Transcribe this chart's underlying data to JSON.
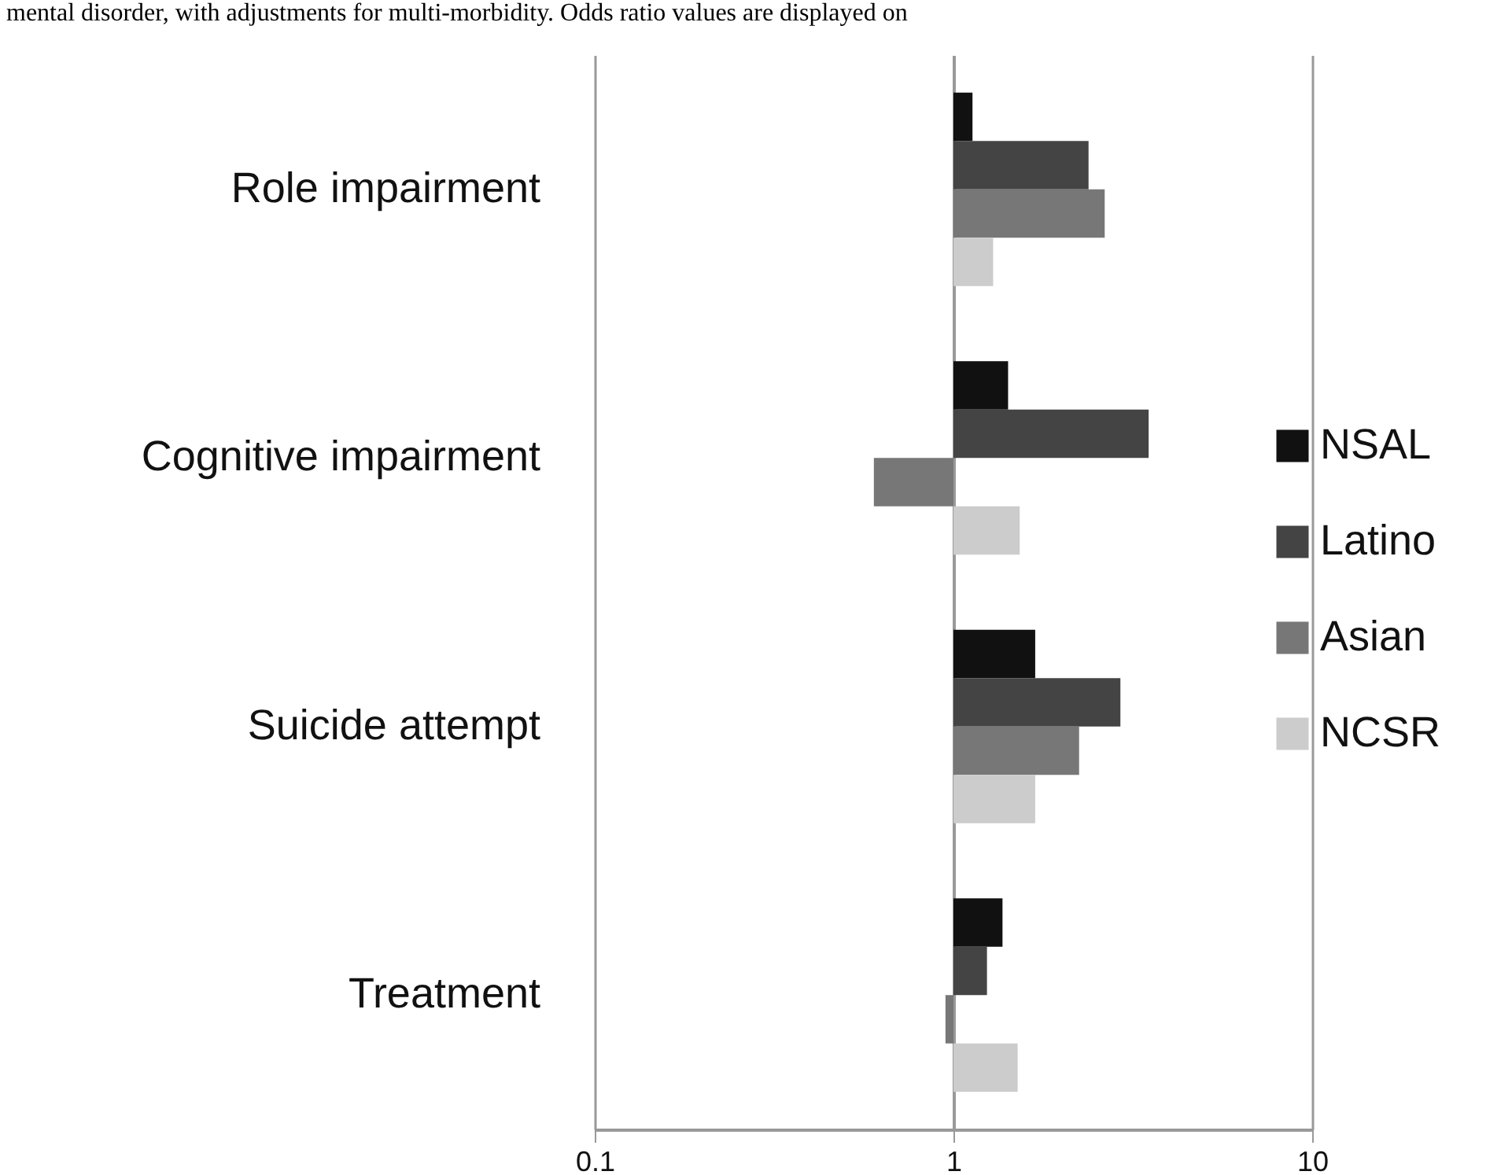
{
  "chart_data": {
    "type": "bar",
    "orientation": "horizontal",
    "log": "x",
    "annotations": [
      "mental disorder, with adjustments for multi-morbidity. Odds ratio values are displayed on"
    ],
    "categories": [
      "Role impairment",
      "Cognitive impairment",
      "Suicide attempt",
      "Treatment"
    ],
    "series": [
      {
        "name": "NSAL",
        "color": "#111111",
        "values": [
          0.13,
          0.42,
          0.69,
          0.37
        ],
        "base": [
          1,
          1,
          1,
          1
        ]
      },
      {
        "name": "Latino",
        "color": "#444444",
        "values": [
          1.38,
          2.5,
          1.92,
          0.24
        ],
        "base": [
          1,
          1,
          1,
          1
        ]
      },
      {
        "name": "Asian",
        "color": "#777777",
        "values": [
          1.64,
          -0.4,
          1.24,
          -0.05
        ],
        "base": [
          1,
          1,
          1,
          1
        ]
      },
      {
        "name": "NCSR",
        "color": "#cccccc",
        "values": [
          0.29,
          0.53,
          0.69,
          0.51
        ],
        "base": [
          1,
          1,
          1,
          1
        ]
      }
    ],
    "xlim": [
      0.1,
      10
    ],
    "xticks": [
      0.1,
      1,
      10
    ],
    "grid": "x",
    "legend": "right"
  }
}
